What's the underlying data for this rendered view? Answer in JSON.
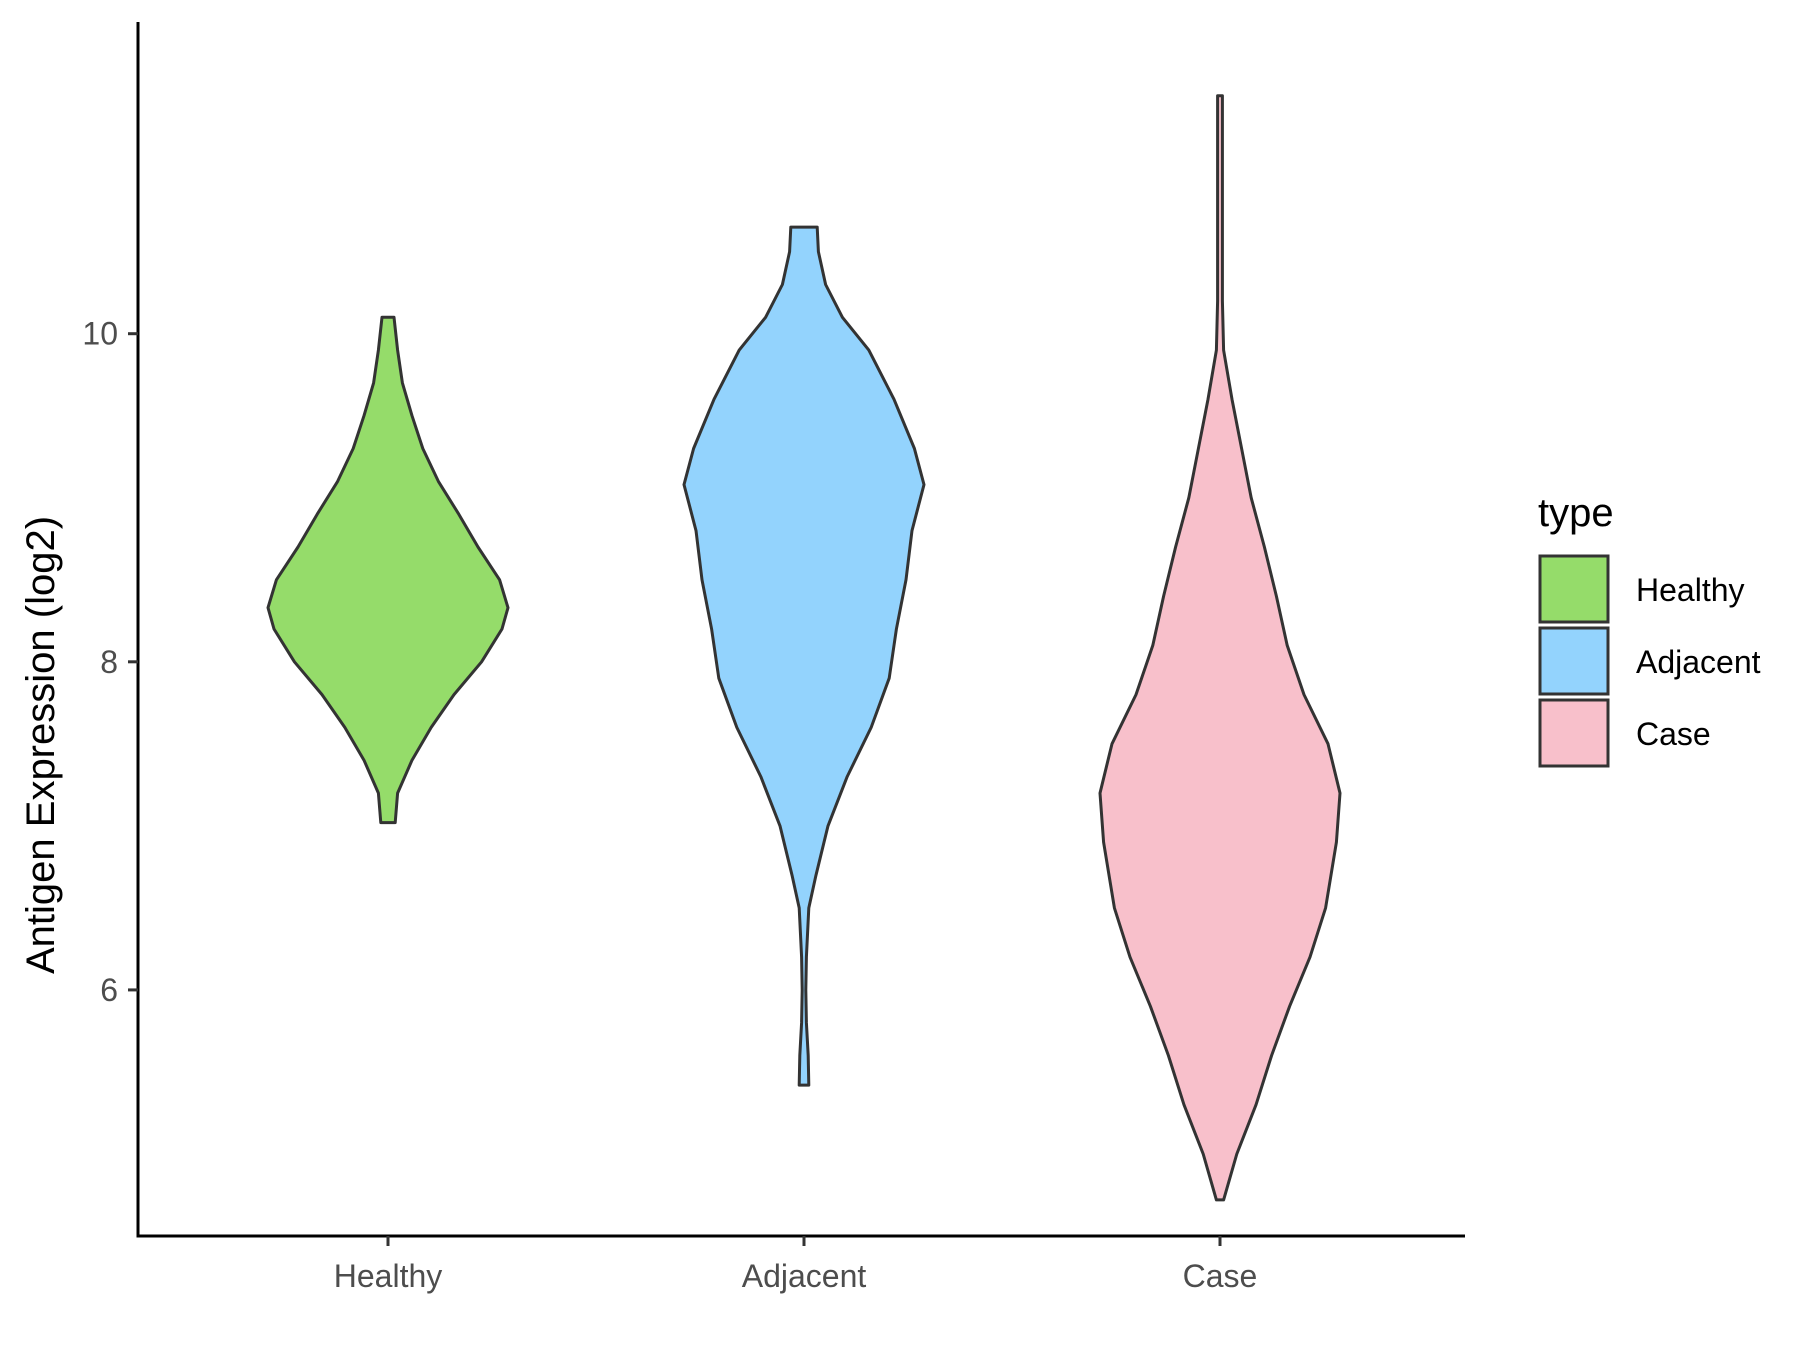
{
  "chart_data": {
    "type": "violin",
    "title": "",
    "xlabel": "",
    "ylabel": "Antigen Expression (log2)",
    "ylim": [
      4.5,
      11.9
    ],
    "yticks": [
      6,
      8,
      10
    ],
    "categories": [
      "Healthy",
      "Adjacent",
      "Case"
    ],
    "grid": false,
    "legend": {
      "title": "type",
      "position": "right",
      "entries": [
        "Healthy",
        "Adjacent",
        "Case"
      ]
    },
    "colors": {
      "Healthy": "#95dc6a",
      "Adjacent": "#93d3fd",
      "Case": "#f8c0cb",
      "outline": "#333333"
    },
    "series": [
      {
        "name": "Healthy",
        "range": [
          7.02,
          10.1
        ],
        "density_profile": [
          [
            7.02,
            0.06
          ],
          [
            7.2,
            0.08
          ],
          [
            7.4,
            0.2
          ],
          [
            7.6,
            0.36
          ],
          [
            7.8,
            0.55
          ],
          [
            8.0,
            0.78
          ],
          [
            8.2,
            0.95
          ],
          [
            8.33,
            1.0
          ],
          [
            8.5,
            0.93
          ],
          [
            8.7,
            0.75
          ],
          [
            8.9,
            0.59
          ],
          [
            9.1,
            0.42
          ],
          [
            9.3,
            0.29
          ],
          [
            9.5,
            0.2
          ],
          [
            9.7,
            0.12
          ],
          [
            9.9,
            0.08
          ],
          [
            10.1,
            0.05
          ]
        ]
      },
      {
        "name": "Adjacent",
        "range": [
          5.42,
          10.65
        ],
        "density_profile": [
          [
            5.42,
            0.04
          ],
          [
            5.6,
            0.035
          ],
          [
            5.8,
            0.02
          ],
          [
            6.0,
            0.015
          ],
          [
            6.2,
            0.02
          ],
          [
            6.5,
            0.04
          ],
          [
            6.7,
            0.1
          ],
          [
            7.0,
            0.2
          ],
          [
            7.3,
            0.36
          ],
          [
            7.6,
            0.56
          ],
          [
            7.9,
            0.71
          ],
          [
            8.2,
            0.77
          ],
          [
            8.5,
            0.85
          ],
          [
            8.8,
            0.9
          ],
          [
            9.08,
            1.0
          ],
          [
            9.3,
            0.92
          ],
          [
            9.6,
            0.75
          ],
          [
            9.9,
            0.54
          ],
          [
            10.1,
            0.32
          ],
          [
            10.3,
            0.18
          ],
          [
            10.5,
            0.12
          ],
          [
            10.65,
            0.11
          ]
        ]
      },
      {
        "name": "Case",
        "range": [
          4.72,
          11.45
        ],
        "density_profile": [
          [
            4.72,
            0.03
          ],
          [
            5.0,
            0.14
          ],
          [
            5.3,
            0.3
          ],
          [
            5.6,
            0.43
          ],
          [
            5.9,
            0.58
          ],
          [
            6.2,
            0.75
          ],
          [
            6.5,
            0.88
          ],
          [
            6.9,
            0.97
          ],
          [
            7.2,
            1.0
          ],
          [
            7.5,
            0.9
          ],
          [
            7.8,
            0.7
          ],
          [
            8.1,
            0.56
          ],
          [
            8.4,
            0.47
          ],
          [
            8.7,
            0.37
          ],
          [
            9.0,
            0.26
          ],
          [
            9.3,
            0.18
          ],
          [
            9.6,
            0.1
          ],
          [
            9.9,
            0.03
          ],
          [
            10.2,
            0.02
          ],
          [
            10.8,
            0.02
          ],
          [
            11.45,
            0.02
          ]
        ]
      }
    ]
  }
}
